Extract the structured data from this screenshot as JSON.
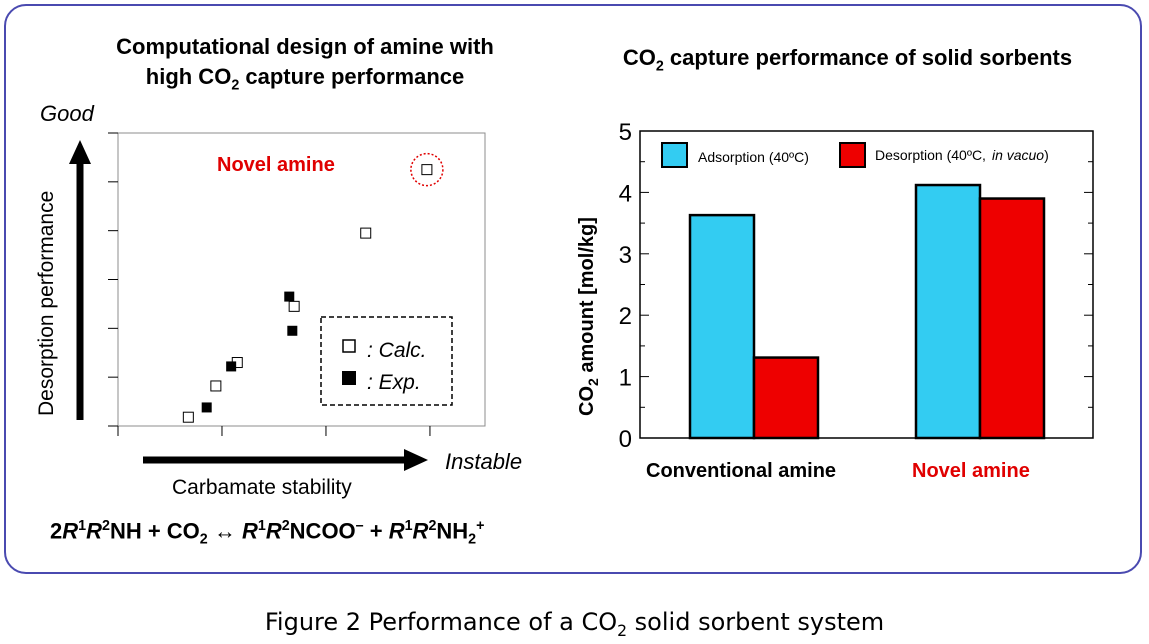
{
  "left_panel": {
    "title_line1": "Computational design of amine with",
    "title_line2_pre": "high CO",
    "title_line2_sub": "2",
    "title_line2_post": " capture performance"
  },
  "right_panel": {
    "title_pre": "CO",
    "title_sub": "2",
    "title_post": " capture performance of solid sorbents"
  },
  "equation": {
    "p1": "2",
    "R": "R",
    "one": "1",
    "two": "2",
    "p_nh": "NH + CO",
    "p_arrow": " ↔ ",
    "p_ncoo": "NCOO",
    "minus": "–",
    "p_plus": " + ",
    "p_nh2": "NH",
    "plus_charge": "+"
  },
  "caption": {
    "pre": "Figure 2  Performance of a CO",
    "sub": "2",
    "post": " solid sorbent system"
  },
  "colors": {
    "frame": "#4a4ab0",
    "adsorption": "#33ccf2",
    "desorption": "#ee0000",
    "novel_text": "#e00000"
  },
  "chart_data": [
    {
      "type": "scatter",
      "xlabel": "Carbamate stability",
      "ylabel": "Desorption performance",
      "y_top_label": "Good",
      "x_right_label": "Instable",
      "annotation": "Novel amine",
      "legend": [
        {
          "marker": "open-square",
          "label": ": Calc."
        },
        {
          "marker": "filled-square",
          "label": ": Exp."
        }
      ],
      "legend_position": "bottom-right",
      "xlim": [
        0,
        6
      ],
      "ylim": [
        0,
        6
      ],
      "series": [
        {
          "name": "Calc.",
          "marker": "open-square",
          "points": [
            [
              1.15,
              0.18
            ],
            [
              1.6,
              0.82
            ],
            [
              1.95,
              1.3
            ],
            [
              2.88,
              2.45
            ],
            [
              4.05,
              3.95
            ],
            [
              5.05,
              5.25
            ]
          ]
        },
        {
          "name": "Exp.",
          "marker": "filled-square",
          "points": [
            [
              1.45,
              0.38
            ],
            [
              1.85,
              1.22
            ],
            [
              2.8,
              2.65
            ],
            [
              2.85,
              1.95
            ]
          ]
        }
      ],
      "highlight_point": [
        5.05,
        5.25
      ],
      "grid": false
    },
    {
      "type": "bar",
      "categories": [
        "Conventional amine",
        "Novel amine"
      ],
      "series": [
        {
          "name": "Adsorption (40ºC)",
          "values": [
            3.63,
            4.12
          ]
        },
        {
          "name": "Desorption (40ºC,",
          "name_suffix_italic": "in vacuo",
          "name_close": ")",
          "values": [
            1.31,
            3.9
          ]
        }
      ],
      "ylabel_pre": "CO",
      "ylabel_sub": "2",
      "ylabel_post": " amount [mol/kg]",
      "ylim": [
        0,
        5
      ],
      "yticks": [
        "0",
        "1",
        "2",
        "3",
        "4",
        "5"
      ],
      "legend_position": "top",
      "grid": false
    }
  ]
}
